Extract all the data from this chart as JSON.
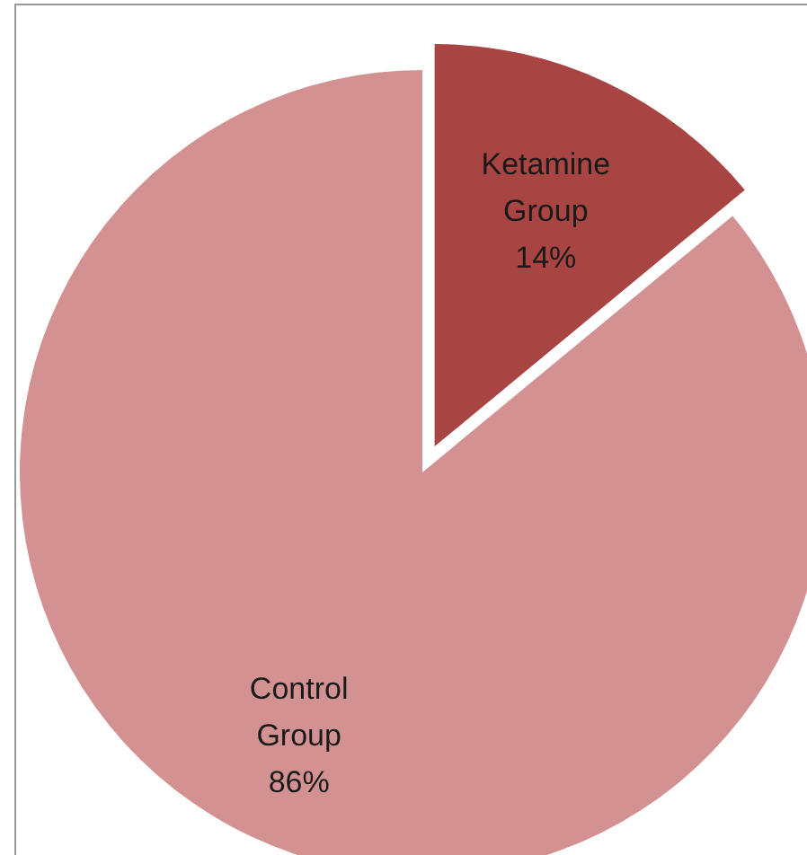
{
  "chart_data": {
    "type": "pie",
    "categories": [
      "Ketamine Group",
      "Control Group"
    ],
    "values": [
      14,
      86
    ],
    "colors": [
      "#a84442",
      "#d39291"
    ],
    "value_labels": [
      "14%",
      "86%"
    ]
  }
}
